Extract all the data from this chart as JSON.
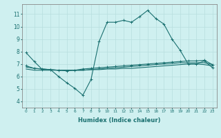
{
  "xlabel": "Humidex (Indice chaleur)",
  "bg_color": "#cff0f0",
  "grid_color": "#b8dede",
  "line_color": "#1a7070",
  "spine_color": "#888888",
  "x_ticks": [
    0,
    1,
    2,
    3,
    4,
    5,
    6,
    7,
    8,
    9,
    10,
    11,
    12,
    13,
    14,
    15,
    16,
    17,
    18,
    19,
    20,
    21,
    22,
    23
  ],
  "ylim": [
    3.5,
    11.8
  ],
  "xlim": [
    -0.5,
    23.5
  ],
  "line1_x": [
    0,
    1,
    2,
    3,
    4,
    5,
    6,
    7,
    8,
    9,
    10,
    11,
    12,
    13,
    14,
    15,
    16,
    17,
    18,
    19,
    20,
    21,
    22,
    23
  ],
  "line1_y": [
    7.9,
    7.2,
    6.55,
    6.55,
    6.0,
    5.5,
    5.05,
    4.5,
    5.75,
    8.8,
    10.35,
    10.35,
    10.5,
    10.35,
    10.8,
    11.3,
    10.65,
    10.2,
    9.0,
    8.1,
    7.0,
    7.0,
    7.25,
    6.7
  ],
  "line2_x": [
    0,
    1,
    2,
    3,
    4,
    5,
    6,
    7,
    8,
    9,
    10,
    11,
    12,
    13,
    14,
    15,
    16,
    17,
    18,
    19,
    20,
    21,
    22,
    23
  ],
  "line2_y": [
    6.85,
    6.65,
    6.6,
    6.55,
    6.5,
    6.45,
    6.5,
    6.6,
    6.65,
    6.7,
    6.75,
    6.8,
    6.85,
    6.9,
    6.95,
    7.0,
    7.05,
    7.1,
    7.15,
    7.2,
    7.25,
    7.25,
    7.3,
    6.95
  ],
  "line3_x": [
    0,
    1,
    2,
    3,
    4,
    5,
    6,
    7,
    8,
    9,
    10,
    11,
    12,
    13,
    14,
    15,
    16,
    17,
    18,
    19,
    20,
    21,
    22,
    23
  ],
  "line3_y": [
    6.6,
    6.5,
    6.5,
    6.5,
    6.5,
    6.5,
    6.5,
    6.5,
    6.55,
    6.55,
    6.6,
    6.6,
    6.65,
    6.65,
    6.7,
    6.75,
    6.8,
    6.85,
    6.9,
    6.95,
    7.0,
    7.0,
    6.95,
    6.85
  ],
  "line4_x": [
    0,
    1,
    2,
    3,
    4,
    5,
    6,
    7,
    8,
    9,
    10,
    11,
    12,
    13,
    14,
    15,
    16,
    17,
    18,
    19,
    20,
    21,
    22,
    23
  ],
  "line4_y": [
    6.75,
    6.65,
    6.6,
    6.55,
    6.5,
    6.5,
    6.5,
    6.5,
    6.55,
    6.6,
    6.65,
    6.7,
    6.75,
    6.8,
    6.85,
    6.9,
    6.95,
    7.0,
    7.05,
    7.1,
    7.1,
    7.1,
    7.1,
    6.95
  ],
  "yticks": [
    4,
    5,
    6,
    7,
    8,
    9,
    10,
    11
  ]
}
